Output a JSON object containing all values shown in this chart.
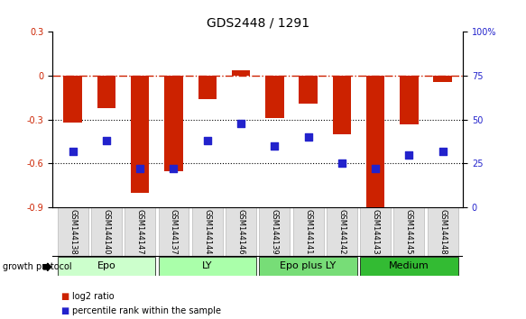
{
  "title": "GDS2448 / 1291",
  "samples": [
    "GSM144138",
    "GSM144140",
    "GSM144147",
    "GSM144137",
    "GSM144144",
    "GSM144146",
    "GSM144139",
    "GSM144141",
    "GSM144142",
    "GSM144143",
    "GSM144145",
    "GSM144148"
  ],
  "log2_ratio": [
    -0.32,
    -0.22,
    -0.8,
    -0.65,
    -0.16,
    0.04,
    -0.29,
    -0.19,
    -0.4,
    -0.93,
    -0.33,
    -0.04
  ],
  "percentile_rank": [
    32,
    38,
    22,
    22,
    38,
    48,
    35,
    40,
    25,
    22,
    30,
    32
  ],
  "groups": [
    {
      "label": "Epo",
      "start": 0,
      "end": 3,
      "color": "#ccffcc"
    },
    {
      "label": "LY",
      "start": 3,
      "end": 6,
      "color": "#aaffaa"
    },
    {
      "label": "Epo plus LY",
      "start": 6,
      "end": 9,
      "color": "#77dd77"
    },
    {
      "label": "Medium",
      "start": 9,
      "end": 12,
      "color": "#33bb33"
    }
  ],
  "bar_color": "#cc2200",
  "dot_color": "#2222cc",
  "zero_line_color": "#cc2200",
  "ylim_left": [
    -0.9,
    0.3
  ],
  "ylim_right": [
    0,
    100
  ],
  "yticks_left": [
    -0.9,
    -0.6,
    -0.3,
    0.0,
    0.3
  ],
  "ytick_labels_left": [
    "-0.9",
    "-0.6",
    "-0.3",
    "0",
    "0.3"
  ],
  "yticks_right": [
    0,
    25,
    50,
    75,
    100
  ],
  "ytick_labels_right": [
    "0",
    "25",
    "50",
    "75",
    "100%"
  ],
  "hline_positions": [
    -0.6,
    -0.3
  ],
  "bar_width": 0.55,
  "dot_size": 35,
  "legend_log2": "log2 ratio",
  "legend_pct": "percentile rank within the sample",
  "growth_protocol_label": "growth protocol",
  "title_fontsize": 10,
  "tick_fontsize": 7,
  "group_fontsize": 8,
  "legend_fontsize": 7,
  "sample_fontsize": 6
}
